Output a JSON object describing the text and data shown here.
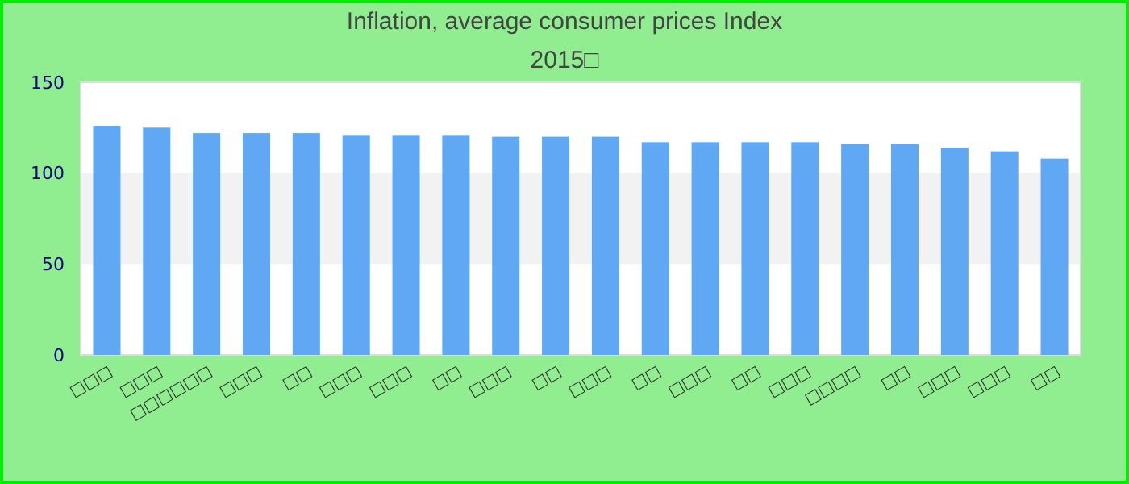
{
  "chart_data": {
    "type": "bar",
    "title": "Inflation, average consumer prices  Index",
    "subtitle": "2015□",
    "categories": [
      "□□□",
      "□□□",
      "□□□□□□",
      "□□□",
      "□□",
      "□□□",
      "□□□",
      "□□",
      "□□□",
      "□□",
      "□□□",
      "□□",
      "□□□",
      "□□",
      "□□□",
      "□□□□",
      "□□",
      "□□□",
      "□□□",
      "□□"
    ],
    "values": [
      126,
      125,
      122,
      122,
      122,
      121,
      121,
      121,
      120,
      120,
      120,
      117,
      117,
      117,
      117,
      116,
      116,
      114,
      112,
      108
    ],
    "color": "#60a8f4",
    "ylim": [
      0,
      150
    ],
    "yticks": [
      0,
      50,
      100,
      150
    ],
    "bands": [
      {
        "axis": "y",
        "from": 50,
        "to": 100,
        "color": "#f2f2f2"
      }
    ]
  }
}
